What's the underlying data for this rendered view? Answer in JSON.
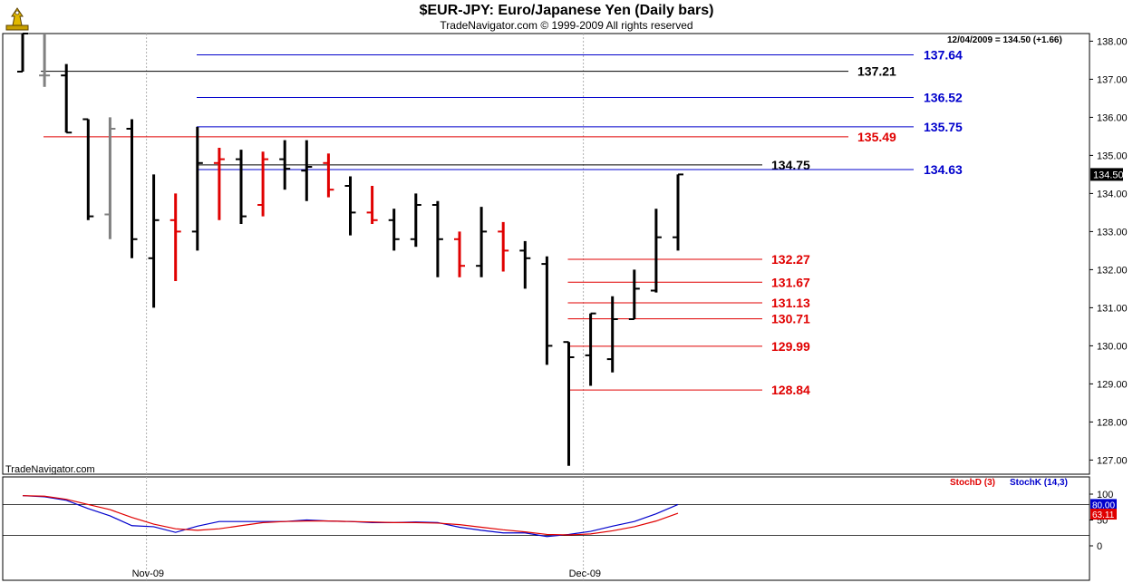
{
  "header": {
    "title": "$EUR-JPY:  Euro/Japanese Yen  (Daily bars)",
    "subtitle": "TradeNavigator.com © 1999-2009 All rights reserved"
  },
  "watermark": "TradeNavigator.com",
  "info_readout": "12/04/2009 = 134.50 (+1.66)",
  "chart_data": [
    {
      "type": "ohlc",
      "name": "price",
      "ylim": [
        126.6,
        138.2
      ],
      "y_ticks": [
        {
          "v": 127,
          "label": "127.00"
        },
        {
          "v": 128,
          "label": "128.00"
        },
        {
          "v": 129,
          "label": "129.00"
        },
        {
          "v": 130,
          "label": "130.00"
        },
        {
          "v": 131,
          "label": "131.00"
        },
        {
          "v": 132,
          "label": "132.00"
        },
        {
          "v": 133,
          "label": "133.00"
        },
        {
          "v": 134,
          "label": "134.00"
        },
        {
          "v": 135,
          "label": "135.00"
        },
        {
          "v": 136,
          "label": "136.00"
        },
        {
          "v": 137,
          "label": "137.00"
        },
        {
          "v": 138,
          "label": "138.00"
        }
      ],
      "x_labels": [
        {
          "bar": 6,
          "label": "Nov-09"
        },
        {
          "bar": 26,
          "label": "Dec-09"
        }
      ],
      "last_price_label": "134.50",
      "colors": {
        "up": "#000000",
        "down": "#000000",
        "red": "#e00000",
        "gray": "#808080"
      },
      "bars": [
        {
          "o": 137.2,
          "h": 138.2,
          "l": 137.2,
          "c": 138.2,
          "color": "black"
        },
        {
          "o": 137.1,
          "h": 138.2,
          "l": 136.8,
          "c": 137.1,
          "color": "gray"
        },
        {
          "o": 137.1,
          "h": 137.4,
          "l": 135.6,
          "c": 135.6,
          "color": "black"
        },
        {
          "o": 135.95,
          "h": 135.95,
          "l": 133.3,
          "c": 133.4,
          "color": "black"
        },
        {
          "o": 133.45,
          "h": 136.0,
          "l": 132.8,
          "c": 135.7,
          "color": "gray"
        },
        {
          "o": 135.7,
          "h": 135.95,
          "l": 132.3,
          "c": 132.8,
          "color": "black"
        },
        {
          "o": 132.3,
          "h": 134.5,
          "l": 131.0,
          "c": 133.3,
          "color": "black"
        },
        {
          "o": 133.3,
          "h": 134.0,
          "l": 131.7,
          "c": 133.0,
          "color": "red"
        },
        {
          "o": 133.0,
          "h": 135.75,
          "l": 132.5,
          "c": 134.8,
          "color": "black"
        },
        {
          "o": 134.8,
          "h": 135.2,
          "l": 133.3,
          "c": 134.9,
          "color": "red"
        },
        {
          "o": 134.9,
          "h": 135.15,
          "l": 133.2,
          "c": 133.4,
          "color": "black"
        },
        {
          "o": 133.7,
          "h": 135.1,
          "l": 133.4,
          "c": 134.9,
          "color": "red"
        },
        {
          "o": 134.9,
          "h": 135.4,
          "l": 134.1,
          "c": 134.65,
          "color": "black"
        },
        {
          "o": 134.6,
          "h": 135.4,
          "l": 133.8,
          "c": 134.7,
          "color": "black"
        },
        {
          "o": 134.8,
          "h": 135.05,
          "l": 133.9,
          "c": 134.1,
          "color": "red"
        },
        {
          "o": 134.2,
          "h": 134.45,
          "l": 132.9,
          "c": 133.5,
          "color": "black"
        },
        {
          "o": 133.5,
          "h": 134.2,
          "l": 133.2,
          "c": 133.3,
          "color": "red"
        },
        {
          "o": 133.3,
          "h": 133.6,
          "l": 132.5,
          "c": 132.8,
          "color": "black"
        },
        {
          "o": 132.8,
          "h": 134.0,
          "l": 132.6,
          "c": 133.7,
          "color": "black"
        },
        {
          "o": 133.7,
          "h": 133.8,
          "l": 131.8,
          "c": 132.8,
          "color": "black"
        },
        {
          "o": 132.8,
          "h": 133.0,
          "l": 131.8,
          "c": 132.1,
          "color": "red"
        },
        {
          "o": 132.1,
          "h": 133.65,
          "l": 131.8,
          "c": 133.0,
          "color": "black"
        },
        {
          "o": 133.0,
          "h": 133.25,
          "l": 131.95,
          "c": 132.5,
          "color": "red"
        },
        {
          "o": 132.5,
          "h": 132.75,
          "l": 131.5,
          "c": 132.3,
          "color": "black"
        },
        {
          "o": 132.15,
          "h": 132.35,
          "l": 129.5,
          "c": 130.0,
          "color": "black"
        },
        {
          "o": 130.1,
          "h": 130.1,
          "l": 126.85,
          "c": 129.7,
          "color": "black"
        },
        {
          "o": 129.75,
          "h": 130.85,
          "l": 128.95,
          "c": 130.85,
          "color": "black"
        },
        {
          "o": 129.65,
          "h": 131.3,
          "l": 129.3,
          "c": 130.7,
          "color": "black"
        },
        {
          "o": 130.7,
          "h": 132.0,
          "l": 130.7,
          "c": 131.5,
          "color": "black"
        },
        {
          "o": 131.45,
          "h": 133.6,
          "l": 131.4,
          "c": 132.85,
          "color": "black"
        },
        {
          "o": 132.85,
          "h": 134.5,
          "l": 132.5,
          "c": 134.5,
          "color": "black"
        }
      ],
      "levels": [
        {
          "value": 137.64,
          "label": "137.64",
          "color": "#0000cc",
          "start_bar": 8
        },
        {
          "value": 137.21,
          "label": "137.21",
          "color": "#000000",
          "start_bar": 1
        },
        {
          "value": 136.52,
          "label": "136.52",
          "color": "#0000cc",
          "start_bar": 8
        },
        {
          "value": 135.75,
          "label": "135.75",
          "color": "#0000cc",
          "start_bar": 8
        },
        {
          "value": 135.49,
          "label": "135.49",
          "color": "#e00000",
          "start_bar": 1
        },
        {
          "value": 134.75,
          "label": "134.75",
          "color": "#000000",
          "start_bar": 8
        },
        {
          "value": 134.63,
          "label": "134.63",
          "color": "#0000cc",
          "start_bar": 8
        },
        {
          "value": 132.27,
          "label": "132.27",
          "color": "#e00000",
          "start_bar": 25
        },
        {
          "value": 131.67,
          "label": "131.67",
          "color": "#e00000",
          "start_bar": 25
        },
        {
          "value": 131.13,
          "label": "131.13",
          "color": "#e00000",
          "start_bar": 25
        },
        {
          "value": 130.71,
          "label": "130.71",
          "color": "#e00000",
          "start_bar": 25
        },
        {
          "value": 129.99,
          "label": "129.99",
          "color": "#e00000",
          "start_bar": 25
        },
        {
          "value": 128.84,
          "label": "128.84",
          "color": "#e00000",
          "start_bar": 25
        }
      ]
    },
    {
      "type": "line",
      "name": "stochastic",
      "ylim": [
        0,
        100
      ],
      "y_ticks": [
        {
          "v": 0,
          "label": "0"
        },
        {
          "v": 50,
          "label": "50"
        },
        {
          "v": 100,
          "label": "100"
        }
      ],
      "ref_lines": [
        20,
        80
      ],
      "legend": [
        {
          "label": "StochD (3)",
          "color": "#e00000"
        },
        {
          "label": "StochK (14,3)",
          "color": "#0000cc"
        }
      ],
      "last_labels": [
        {
          "label": "80.00",
          "bg": "#0000cc"
        },
        {
          "label": "63.11",
          "bg": "#e00000"
        }
      ],
      "series": [
        {
          "name": "StochK (14,3)",
          "color": "#0000cc",
          "values": [
            97,
            95,
            88,
            72,
            58,
            39,
            37,
            26,
            38,
            47,
            47,
            47,
            47,
            50,
            48,
            47,
            45,
            45,
            46,
            45,
            36,
            30,
            25,
            25,
            18,
            22,
            28,
            38,
            47,
            62,
            80
          ]
        },
        {
          "name": "StochD (3)",
          "color": "#e00000",
          "values": [
            97,
            96,
            90,
            80,
            70,
            55,
            42,
            33,
            30,
            33,
            39,
            45,
            47,
            48,
            48,
            47,
            46,
            45,
            45,
            44,
            41,
            36,
            31,
            27,
            22,
            21,
            23,
            29,
            37,
            48,
            63
          ]
        }
      ]
    }
  ]
}
